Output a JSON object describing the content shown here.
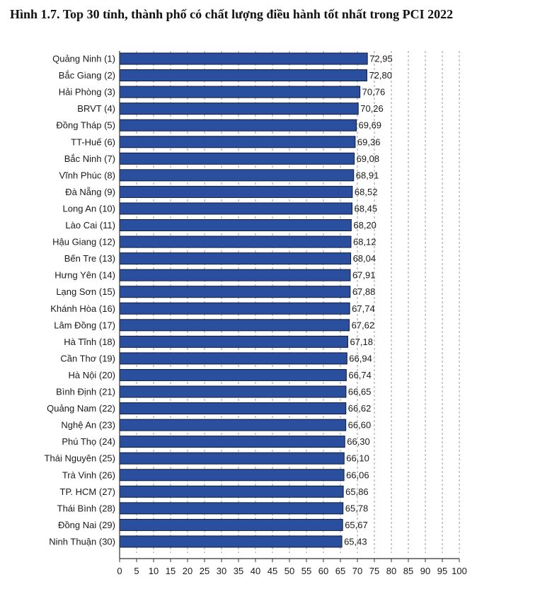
{
  "chart_data": {
    "type": "bar",
    "orientation": "horizontal",
    "title": "Hình 1.7. Top 30 tỉnh, thành phố có chất lượng điều hành tốt nhất trong PCI 2022",
    "categories": [
      "Quảng Ninh (1)",
      "Bắc Giang (2)",
      "Hải Phòng (3)",
      "BRVT (4)",
      "Đồng Tháp (5)",
      "TT-Huế (6)",
      "Bắc Ninh (7)",
      "Vĩnh Phúc (8)",
      "Đà Nẵng (9)",
      "Long An (10)",
      "Lào Cai (11)",
      "Hậu Giang (12)",
      "Bến Tre (13)",
      "Hưng Yên (14)",
      "Lạng Sơn (15)",
      "Khánh Hòa (16)",
      "Lâm Đồng (17)",
      "Hà Tĩnh (18)",
      "Cần Thơ (19)",
      "Hà Nội (20)",
      "Bình Định (21)",
      "Quảng Nam (22)",
      "Nghệ An (23)",
      "Phú Thọ (24)",
      "Thái Nguyên (25)",
      "Trà Vinh (26)",
      "TP. HCM (27)",
      "Thái Bình (28)",
      "Đồng Nai (29)",
      "Ninh Thuận (30)"
    ],
    "values": [
      72.95,
      72.8,
      70.76,
      70.26,
      69.69,
      69.36,
      69.08,
      68.91,
      68.52,
      68.45,
      68.2,
      68.12,
      68.04,
      67.91,
      67.88,
      67.74,
      67.62,
      67.18,
      66.94,
      66.74,
      66.65,
      66.62,
      66.6,
      66.3,
      66.1,
      66.06,
      65.86,
      65.78,
      65.67,
      65.43
    ],
    "value_labels": [
      "72,95",
      "72,80",
      "70,76",
      "70,26",
      "69,69",
      "69,36",
      "69,08",
      "68,91",
      "68,52",
      "68,45",
      "68,20",
      "68,12",
      "68,04",
      "67,91",
      "67,88",
      "67,74",
      "67,62",
      "67,18",
      "66,94",
      "66,74",
      "66,65",
      "66,62",
      "66,60",
      "66,30",
      "66,10",
      "66,06",
      "65,86",
      "65,78",
      "65,67",
      "65,43"
    ],
    "xlim": [
      0,
      100
    ],
    "xticks": [
      0,
      5,
      10,
      15,
      20,
      25,
      30,
      35,
      40,
      45,
      50,
      55,
      60,
      65,
      70,
      75,
      80,
      85,
      90,
      95,
      100
    ],
    "xlabel": "",
    "ylabel": "",
    "grid": "vertical dashed",
    "bar_color": "#2a4f9e",
    "bar_edge_color": "#0d1a3a"
  }
}
